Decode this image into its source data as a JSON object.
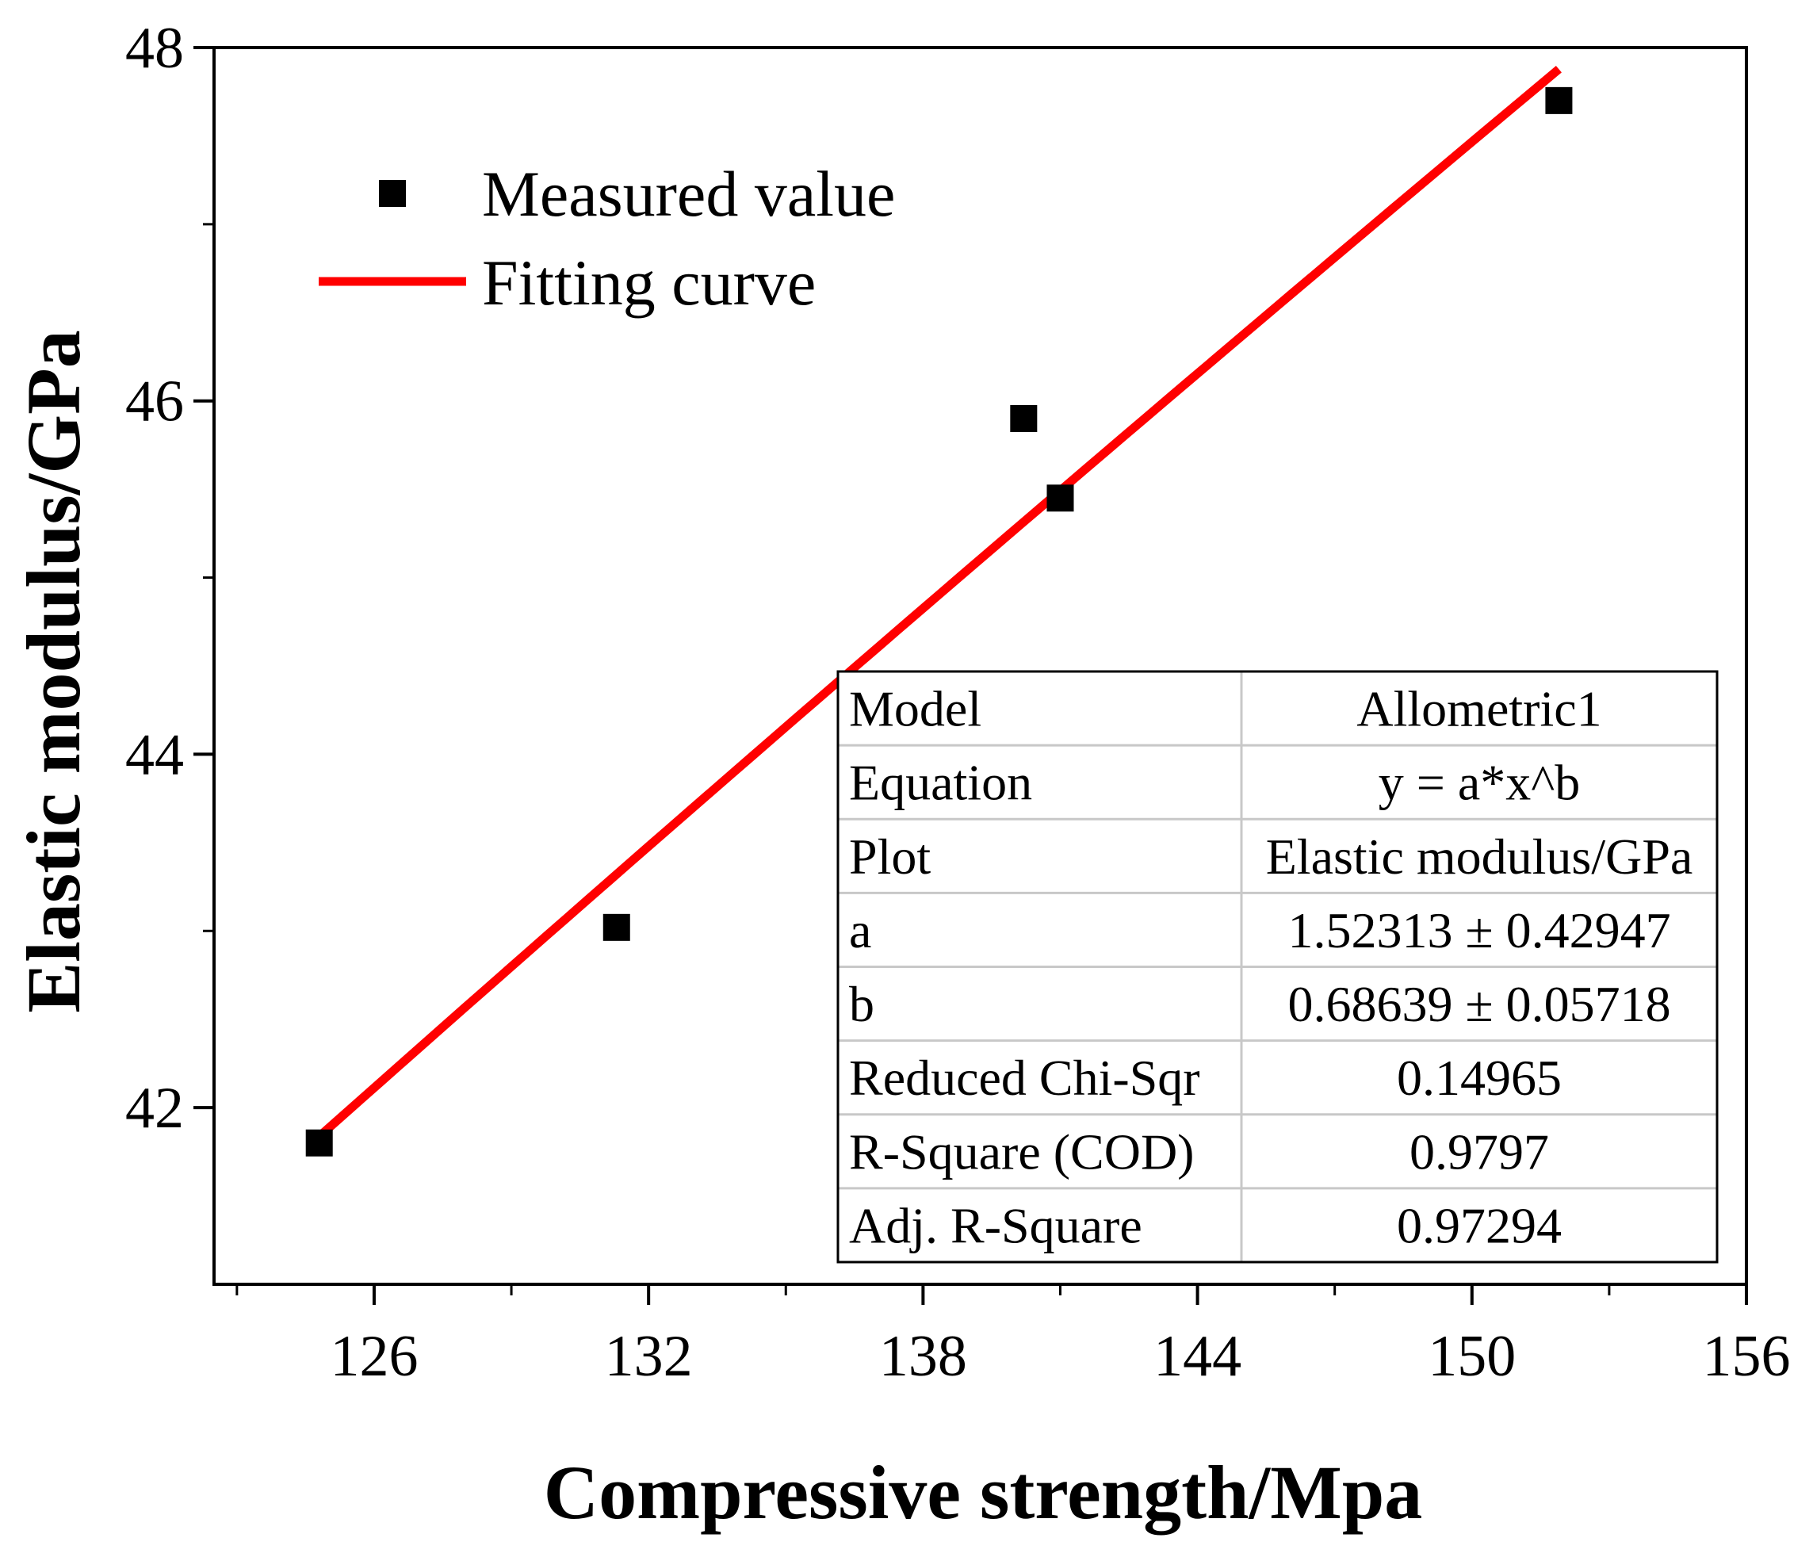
{
  "chart_data": {
    "type": "scatter",
    "xlabel": "Compressive strength/Mpa",
    "ylabel": "Elastic modulus/GPa",
    "xlim": [
      122.5,
      156
    ],
    "ylim": [
      41,
      48
    ],
    "x_ticks": [
      126,
      132,
      138,
      144,
      150,
      156
    ],
    "y_ticks": [
      42,
      44,
      46,
      48
    ],
    "grid": false,
    "legend_position": "top-left",
    "series": [
      {
        "name": "Measured value",
        "type": "scatter",
        "marker": "square",
        "color": "#000000",
        "x": [
          124.8,
          131.3,
          140.2,
          141.0,
          151.9
        ],
        "y": [
          41.8,
          43.02,
          45.9,
          45.45,
          47.7
        ]
      },
      {
        "name": "Fitting curve",
        "type": "line",
        "color": "#ff0000",
        "model": "Allometric1",
        "a": 1.52313,
        "b": 0.68639,
        "x_range": [
          124.8,
          151.9
        ]
      }
    ],
    "fit_table": {
      "rows": [
        [
          "Model",
          "Allometric1"
        ],
        [
          "Equation",
          "y = a*x^b"
        ],
        [
          "Plot",
          "Elastic modulus/GPa"
        ],
        [
          "a",
          "1.52313 ± 0.42947"
        ],
        [
          "b",
          "0.68639 ± 0.05718"
        ],
        [
          "Reduced Chi-Sqr",
          "0.14965"
        ],
        [
          "R-Square (COD)",
          "0.9797"
        ],
        [
          "Adj. R-Square",
          "0.97294"
        ]
      ]
    }
  }
}
